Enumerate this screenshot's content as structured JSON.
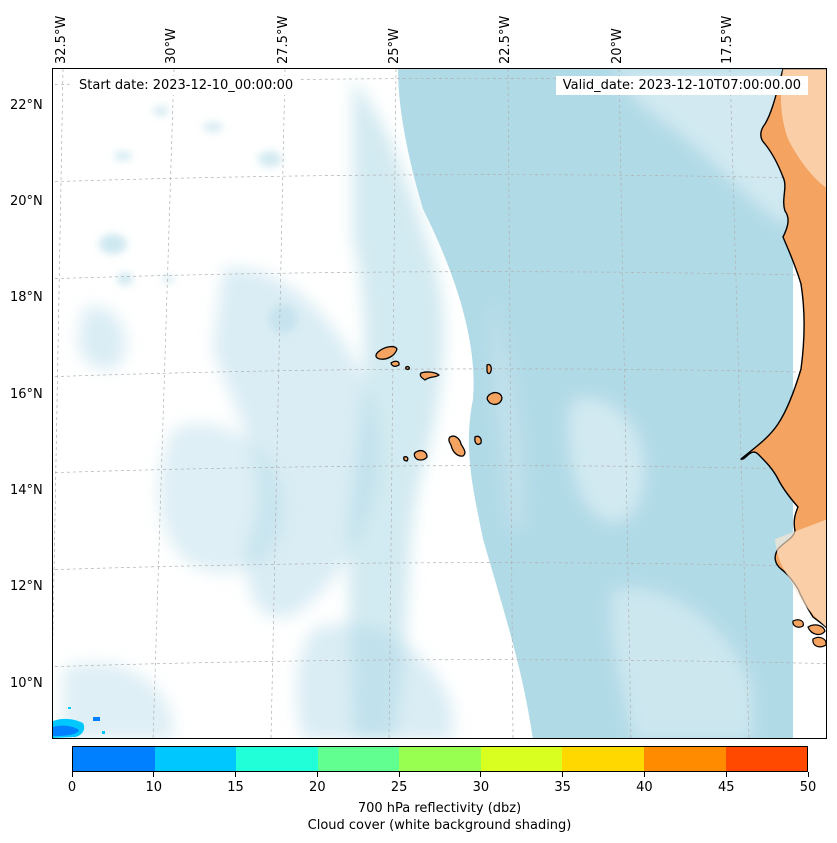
{
  "map": {
    "start_date": "Start date: 2023-12-10_00:00:00",
    "valid_date": "Valid_date: 2023-12-10T07:00:00.00",
    "lon_labels": [
      "32.5°W",
      "30°W",
      "27.5°W",
      "25°W",
      "22.5°W",
      "20°W",
      "17.5°W"
    ],
    "lat_labels": [
      "22°N",
      "20°N",
      "18°N",
      "16°N",
      "14°N",
      "12°N",
      "10°N"
    ],
    "colors": {
      "land": "#f4a460",
      "ocean_cloud": "#add8e6",
      "coastline": "#000000",
      "gridline": "#b0b0b0"
    },
    "features": [
      "west-african-coastline",
      "cape-verde-islands"
    ]
  },
  "colorbar": {
    "ticks": [
      "0",
      "10",
      "15",
      "20",
      "25",
      "30",
      "35",
      "40",
      "45",
      "50"
    ],
    "colors": [
      "#0080ff",
      "#00c8ff",
      "#20ffd8",
      "#60ff90",
      "#98ff50",
      "#d8ff20",
      "#ffd800",
      "#ff8c00",
      "#ff4800"
    ],
    "title_line1": "700 hPa reflectivity (dbz)",
    "title_line2": "Cloud cover (white background shading)"
  }
}
